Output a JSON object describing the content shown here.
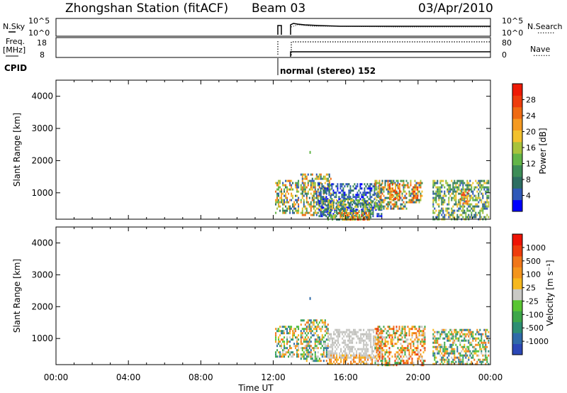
{
  "header": {
    "station": "Zhongshan Station (fitACF)",
    "beam": "Beam 03",
    "date": "03/Apr/2010"
  },
  "status_panels": {
    "nsky_label": "N.Sky",
    "nsky_ticks": [
      "10^5",
      "10^0"
    ],
    "nsearch_label": "N.Search",
    "nsearch_ticks": [
      "10^5",
      "10^0"
    ],
    "freq_label": "Freq.",
    "freq_unit": "[MHz]",
    "freq_ticks": [
      "18",
      "8"
    ],
    "nave_label": "Nave",
    "nave_ticks": [
      "80",
      "0"
    ],
    "cpid_label": "CPID",
    "cpid_text": "normal (stereo) 152",
    "linestyle_dotted": "......."
  },
  "chart_data": [
    {
      "type": "heatmap",
      "panel": "power",
      "ylabel": "Slant Range [km]",
      "xlabel": "",
      "ylim": [
        180,
        4500
      ],
      "yticks": [
        "1000",
        "2000",
        "3000",
        "4000"
      ],
      "colorbar": {
        "label": "Power [dB]",
        "ticks": [
          "28",
          "24",
          "20",
          "16",
          "12",
          "8",
          "4"
        ],
        "colors": [
          "#0000ff",
          "#2f58b8",
          "#2d6e62",
          "#3d8d57",
          "#63b548",
          "#a8c33c",
          "#f2c12e",
          "#f59a22",
          "#ef6a12",
          "#ee3c0c",
          "#ee1a05"
        ]
      },
      "regions": [
        {
          "t0": 12.1,
          "t1": 13.4,
          "r0": 400,
          "r1": 1400,
          "mix": "power_mix"
        },
        {
          "t0": 13.5,
          "t1": 15.2,
          "r0": 300,
          "r1": 1600,
          "mix": "power_mix"
        },
        {
          "t0": 14.5,
          "t1": 18.0,
          "r0": 300,
          "r1": 1300,
          "mix": "power_blue"
        },
        {
          "t0": 15.0,
          "t1": 17.5,
          "r0": 200,
          "r1": 800,
          "mix": "power_green"
        },
        {
          "t0": 15.6,
          "t1": 17.3,
          "r0": 180,
          "r1": 400,
          "mix": "power_hot"
        },
        {
          "t0": 17.6,
          "t1": 19.4,
          "r0": 500,
          "r1": 1400,
          "mix": "power_mix"
        },
        {
          "t0": 18.4,
          "t1": 19.0,
          "r0": 800,
          "r1": 1300,
          "mix": "power_hot"
        },
        {
          "t0": 19.4,
          "t1": 20.2,
          "r0": 700,
          "r1": 1400,
          "mix": "power_mix"
        },
        {
          "t0": 19.7,
          "t1": 20.0,
          "r0": 800,
          "r1": 1200,
          "mix": "power_hot"
        },
        {
          "t0": 20.8,
          "t1": 23.9,
          "r0": 180,
          "r1": 1400,
          "mix": "power_sparse"
        },
        {
          "t0": 22.3,
          "t1": 22.8,
          "r0": 700,
          "r1": 1100,
          "mix": "power_hot"
        }
      ],
      "points": [
        {
          "t": 14.0,
          "r": 2300
        }
      ]
    },
    {
      "type": "heatmap",
      "panel": "velocity",
      "ylabel": "Slant Range [km]",
      "xlabel": "Time UT",
      "ylim": [
        180,
        4500
      ],
      "yticks": [
        "1000",
        "2000",
        "3000",
        "4000"
      ],
      "xticks": [
        "00:00",
        "04:00",
        "08:00",
        "12:00",
        "16:00",
        "20:00",
        "00:00"
      ],
      "colorbar": {
        "label": "Velocity [m s⁻¹]",
        "ticks": [
          "1000",
          "500",
          "100",
          "25",
          "-25",
          "-100",
          "-500",
          "-1000"
        ],
        "colors": [
          "#2b47b6",
          "#2f6aa8",
          "#2d8e73",
          "#3da64a",
          "#59c533",
          "#c9c9c5",
          "#f6b81e",
          "#f4951d",
          "#f07619",
          "#ee3c0c",
          "#ee1405"
        ]
      },
      "regions": [
        {
          "t0": 12.1,
          "t1": 13.4,
          "r0": 400,
          "r1": 1400,
          "mix": "vel_mix"
        },
        {
          "t0": 13.5,
          "t1": 15.0,
          "r0": 300,
          "r1": 1600,
          "mix": "vel_mix"
        },
        {
          "t0": 15.0,
          "t1": 18.0,
          "r0": 400,
          "r1": 1300,
          "mix": "vel_grey"
        },
        {
          "t0": 15.0,
          "t1": 17.5,
          "r0": 180,
          "r1": 500,
          "mix": "vel_warm"
        },
        {
          "t0": 17.6,
          "t1": 20.4,
          "r0": 180,
          "r1": 1400,
          "mix": "vel_orange"
        },
        {
          "t0": 20.8,
          "t1": 23.9,
          "r0": 180,
          "r1": 1300,
          "mix": "vel_mix"
        }
      ],
      "points": [
        {
          "t": 14.0,
          "r": 2300
        }
      ]
    }
  ]
}
